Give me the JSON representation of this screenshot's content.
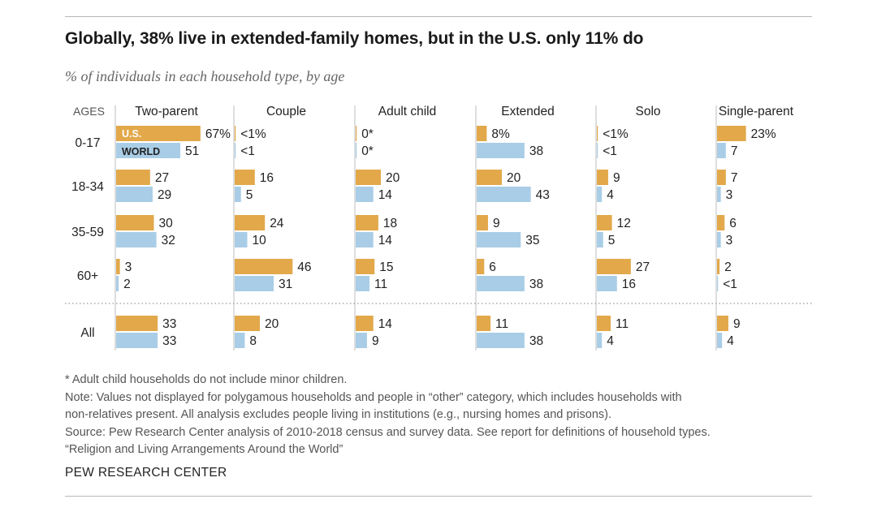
{
  "title": "Globally, 38% live in extended-family homes, but in the U.S. only 11% do",
  "subtitle": "% of individuals in each household type, by age",
  "colors": {
    "us": "#e2a84a",
    "world": "#a9cde6",
    "text": "#222222",
    "divider": "#999999"
  },
  "chart_data": {
    "type": "bar",
    "orientation": "horizontal",
    "row_header": "AGES",
    "columns": [
      "Two-parent",
      "Couple",
      "Adult child",
      "Extended",
      "Solo",
      "Single-parent"
    ],
    "age_groups": [
      "0-17",
      "18-34",
      "35-59",
      "60+",
      "All"
    ],
    "series": [
      {
        "name": "U.S.",
        "values": [
          [
            67,
            0.5,
            0.5,
            8,
            0.5,
            23
          ],
          [
            27,
            16,
            20,
            20,
            9,
            7
          ],
          [
            30,
            24,
            18,
            9,
            12,
            6
          ],
          [
            3,
            46,
            15,
            6,
            27,
            2
          ],
          [
            33,
            20,
            14,
            11,
            11,
            9
          ]
        ],
        "labels": [
          [
            "67%",
            "<1%",
            "0*",
            "8%",
            "<1%",
            "23%"
          ],
          [
            "27",
            "16",
            "20",
            "20",
            "9",
            "7"
          ],
          [
            "30",
            "24",
            "18",
            "9",
            "12",
            "6"
          ],
          [
            "3",
            "46",
            "15",
            "6",
            "27",
            "2"
          ],
          [
            "33",
            "20",
            "14",
            "11",
            "11",
            "9"
          ]
        ]
      },
      {
        "name": "WORLD",
        "values": [
          [
            51,
            0.5,
            0.5,
            38,
            0.5,
            7
          ],
          [
            29,
            5,
            14,
            43,
            4,
            3
          ],
          [
            32,
            10,
            14,
            35,
            5,
            3
          ],
          [
            2,
            31,
            11,
            38,
            16,
            0.5
          ],
          [
            33,
            8,
            9,
            38,
            4,
            4
          ]
        ],
        "labels": [
          [
            "51",
            "<1",
            "0*",
            "38",
            "<1",
            "7"
          ],
          [
            "29",
            "5",
            "14",
            "43",
            "4",
            "3"
          ],
          [
            "32",
            "10",
            "14",
            "35",
            "5",
            "3"
          ],
          [
            "2",
            "31",
            "11",
            "38",
            "16",
            "<1"
          ],
          [
            "33",
            "8",
            "9",
            "38",
            "4",
            "4"
          ]
        ]
      }
    ]
  },
  "notes": [
    "* Adult child households do not include minor children.",
    "Note: Values not displayed for polygamous households and people in “other” category, which includes households with",
    "non-relatives present. All analysis excludes people living in institutions (e.g., nursing homes and prisons).",
    "Source: Pew Research Center analysis of 2010-2018 census and survey data. See report for definitions of household types.",
    "“Religion and Living Arrangements Around the World”"
  ],
  "brand": "PEW RESEARCH CENTER"
}
